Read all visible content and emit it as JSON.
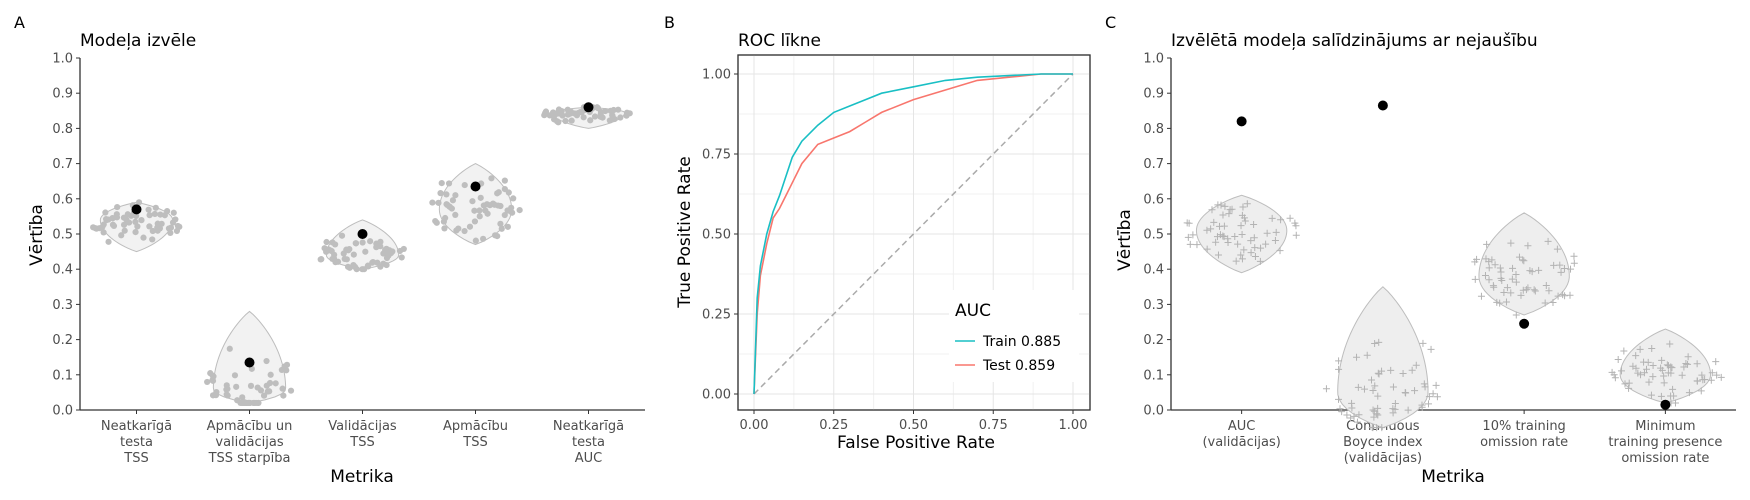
{
  "chart_data": [
    {
      "panel": "A",
      "type": "violin",
      "title": "Modeļa izvēle",
      "xlabel": "Metrika",
      "ylabel": "Vērtība",
      "ylim": [
        0,
        1
      ],
      "yticks": [
        "0.0",
        "0.1",
        "0.2",
        "0.3",
        "0.4",
        "0.5",
        "0.6",
        "0.7",
        "0.8",
        "0.9",
        "1.0"
      ],
      "categories": [
        [
          "Neatkarīgā",
          "testa",
          "TSS"
        ],
        [
          "Apmācību un",
          "validācijas",
          "TSS starpība"
        ],
        [
          "Validācijas",
          "TSS"
        ],
        [
          "Apmācību",
          "TSS"
        ],
        [
          "Neatkarīgā",
          "testa",
          "AUC"
        ]
      ],
      "distributions": [
        {
          "min": 0.45,
          "max": 0.59,
          "center": 0.54
        },
        {
          "min": 0.02,
          "max": 0.28,
          "center": 0.06
        },
        {
          "min": 0.4,
          "max": 0.54,
          "center": 0.44
        },
        {
          "min": 0.47,
          "max": 0.7,
          "center": 0.57
        },
        {
          "min": 0.8,
          "max": 0.86,
          "center": 0.845
        }
      ],
      "selected": [
        0.57,
        0.135,
        0.5,
        0.635,
        0.86
      ]
    },
    {
      "panel": "B",
      "type": "line",
      "title": "ROC līkne",
      "xlabel": "False Positive Rate",
      "ylabel": "True Positive Rate",
      "xlim": [
        0,
        1
      ],
      "ylim": [
        0,
        1
      ],
      "xticks": [
        "0.00",
        "0.25",
        "0.50",
        "0.75",
        "1.00"
      ],
      "yticks": [
        "0.00",
        "0.25",
        "0.50",
        "0.75",
        "1.00"
      ],
      "legend_title": "AUC",
      "legend_position": "bottom-right",
      "series": [
        {
          "name": "Train 0.885",
          "color": "#19bfc4",
          "x": [
            0,
            0.01,
            0.02,
            0.04,
            0.06,
            0.08,
            0.1,
            0.12,
            0.15,
            0.2,
            0.25,
            0.3,
            0.35,
            0.4,
            0.5,
            0.6,
            0.7,
            0.8,
            0.9,
            1.0
          ],
          "y": [
            0,
            0.3,
            0.4,
            0.5,
            0.57,
            0.62,
            0.68,
            0.74,
            0.79,
            0.84,
            0.88,
            0.9,
            0.92,
            0.94,
            0.96,
            0.98,
            0.99,
            0.995,
            1.0,
            1.0
          ]
        },
        {
          "name": "Test 0.859",
          "color": "#f8766d",
          "x": [
            0,
            0.01,
            0.02,
            0.04,
            0.06,
            0.08,
            0.1,
            0.12,
            0.15,
            0.2,
            0.25,
            0.3,
            0.35,
            0.4,
            0.5,
            0.6,
            0.7,
            0.8,
            0.9,
            1.0
          ],
          "y": [
            0,
            0.25,
            0.37,
            0.47,
            0.55,
            0.58,
            0.62,
            0.66,
            0.72,
            0.78,
            0.8,
            0.82,
            0.85,
            0.88,
            0.92,
            0.95,
            0.98,
            0.99,
            1.0,
            1.0
          ]
        }
      ],
      "diagonal": true
    },
    {
      "panel": "C",
      "type": "violin",
      "title": "Izvēlētā modeļa salīdzinājums ar nejaušību",
      "xlabel": "Metrika",
      "ylabel": "Vērtība",
      "ylim": [
        0,
        1
      ],
      "yticks": [
        "0.0",
        "0.1",
        "0.2",
        "0.3",
        "0.4",
        "0.5",
        "0.6",
        "0.7",
        "0.8",
        "0.9",
        "1.0"
      ],
      "categories": [
        [
          "AUC",
          "(validācijas)"
        ],
        [
          "Continuous",
          "Boyce index",
          "(validācijas)"
        ],
        [
          "10% training",
          "omission rate"
        ],
        [
          "Minimum",
          "training presence",
          "omission rate"
        ]
      ],
      "distributions": [
        {
          "min": 0.39,
          "max": 0.61,
          "center": 0.51
        },
        {
          "min": -0.05,
          "max": 0.35,
          "center": 0.05
        },
        {
          "min": 0.27,
          "max": 0.56,
          "center": 0.38
        },
        {
          "min": 0.02,
          "max": 0.23,
          "center": 0.1
        }
      ],
      "selected": [
        0.82,
        0.865,
        0.245,
        0.015
      ]
    }
  ]
}
